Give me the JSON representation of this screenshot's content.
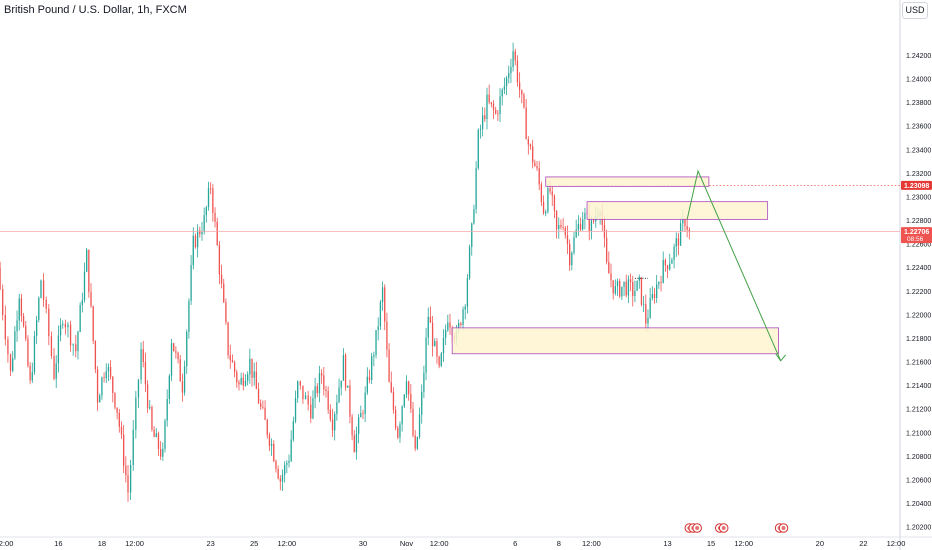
{
  "chart_data": {
    "type": "candlestick",
    "title": "British Pound / U.S. Dollar, 1h, FXCM",
    "currency": "USD",
    "y_axis": {
      "ticks": [
        "1.24200",
        "1.24000",
        "1.23800",
        "1.23600",
        "1.23400",
        "1.23200",
        "1.23000",
        "1.22800",
        "1.22600",
        "1.22400",
        "1.22200",
        "1.22000",
        "1.21800",
        "1.21600",
        "1.21400",
        "1.21200",
        "1.21000",
        "1.20800",
        "1.20600",
        "1.20400",
        "1.20200"
      ],
      "ylim": [
        1.2015,
        1.2445
      ]
    },
    "x_axis": {
      "ticks": [
        {
          "label": "12:00",
          "day": 13.5
        },
        {
          "label": "16",
          "day": 16
        },
        {
          "label": "18",
          "day": 18
        },
        {
          "label": "12:00",
          "day": 19.5
        },
        {
          "label": "23",
          "day": 23
        },
        {
          "label": "25",
          "day": 25
        },
        {
          "label": "12:00",
          "day": 26.5
        },
        {
          "label": "30",
          "day": 30
        },
        {
          "label": "Nov",
          "day": 32
        },
        {
          "label": "12:00",
          "day": 33.5
        },
        {
          "label": "6",
          "day": 37
        },
        {
          "label": "8",
          "day": 39
        },
        {
          "label": "12:00",
          "day": 40.5
        },
        {
          "label": "13",
          "day": 44
        },
        {
          "label": "15",
          "day": 46
        },
        {
          "label": "12:00",
          "day": 47.5
        },
        {
          "label": "20",
          "day": 51
        },
        {
          "label": "22",
          "day": 53
        },
        {
          "label": "12:00",
          "day": 54.5
        }
      ]
    },
    "price_path": [
      [
        13.2,
        1.224
      ],
      [
        13.8,
        1.215
      ],
      [
        14.2,
        1.222
      ],
      [
        14.7,
        1.214
      ],
      [
        15.2,
        1.223
      ],
      [
        15.8,
        1.215
      ],
      [
        16.2,
        1.22
      ],
      [
        16.8,
        1.217
      ],
      [
        17.3,
        1.225
      ],
      [
        17.8,
        1.213
      ],
      [
        18.2,
        1.216
      ],
      [
        18.7,
        1.212
      ],
      [
        19.2,
        1.205
      ],
      [
        19.8,
        1.217
      ],
      [
        20.3,
        1.21
      ],
      [
        20.8,
        1.208
      ],
      [
        21.2,
        1.218
      ],
      [
        21.7,
        1.214
      ],
      [
        22.2,
        1.226
      ],
      [
        22.7,
        1.228
      ],
      [
        23.0,
        1.231
      ],
      [
        23.4,
        1.224
      ],
      [
        23.8,
        1.217
      ],
      [
        24.3,
        1.214
      ],
      [
        24.8,
        1.216
      ],
      [
        25.3,
        1.212
      ],
      [
        25.8,
        1.209
      ],
      [
        26.2,
        1.206
      ],
      [
        26.6,
        1.208
      ],
      [
        27.0,
        1.214
      ],
      [
        27.6,
        1.212
      ],
      [
        28.1,
        1.215
      ],
      [
        28.6,
        1.211
      ],
      [
        29.1,
        1.216
      ],
      [
        29.6,
        1.209
      ],
      [
        30.1,
        1.213
      ],
      [
        30.6,
        1.218
      ],
      [
        30.9,
        1.222
      ],
      [
        31.2,
        1.214
      ],
      [
        31.6,
        1.21
      ],
      [
        32.0,
        1.215
      ],
      [
        32.4,
        1.208
      ],
      [
        32.7,
        1.213
      ],
      [
        33.0,
        1.22
      ],
      [
        33.5,
        1.215
      ],
      [
        33.9,
        1.22
      ],
      [
        34.3,
        1.218
      ],
      [
        34.7,
        1.2215
      ],
      [
        35.0,
        1.227
      ],
      [
        35.3,
        1.235
      ],
      [
        35.7,
        1.238
      ],
      [
        36.1,
        1.237
      ],
      [
        36.6,
        1.24
      ],
      [
        36.9,
        1.2425
      ],
      [
        37.3,
        1.238
      ],
      [
        37.6,
        1.2345
      ],
      [
        38.0,
        1.232
      ],
      [
        38.3,
        1.229
      ],
      [
        38.6,
        1.2305
      ],
      [
        38.9,
        1.227
      ],
      [
        39.2,
        1.228
      ],
      [
        39.5,
        1.225
      ],
      [
        39.8,
        1.227
      ],
      [
        40.1,
        1.2285
      ],
      [
        40.5,
        1.2275
      ],
      [
        40.9,
        1.2295
      ],
      [
        41.2,
        1.224
      ],
      [
        41.6,
        1.222
      ],
      [
        42.0,
        1.2225
      ],
      [
        42.4,
        1.222
      ],
      [
        42.7,
        1.2225
      ],
      [
        43.0,
        1.2195
      ],
      [
        43.4,
        1.222
      ],
      [
        43.8,
        1.224
      ],
      [
        44.2,
        1.225
      ],
      [
        44.6,
        1.227
      ],
      [
        44.8,
        1.2281
      ],
      [
        45.0,
        1.2271
      ]
    ],
    "last_price": "1.22706",
    "countdown": "08:56",
    "marked_level": "1.23098",
    "zones": [
      {
        "name": "upper-resistance",
        "from_day": 38.4,
        "to_day": 45.9,
        "low": 1.2309,
        "high": 1.2317
      },
      {
        "name": "middle-resistance",
        "from_day": 40.3,
        "to_day": 48.6,
        "low": 1.2281,
        "high": 1.2296
      },
      {
        "name": "demand-support",
        "from_day": 34.1,
        "to_day": 49.1,
        "low": 1.2167,
        "high": 1.2189
      }
    ],
    "projection": [
      [
        44.9,
        1.2281
      ],
      [
        45.4,
        1.2322
      ],
      [
        49.2,
        1.2161
      ]
    ],
    "projection_color": "#43a047",
    "up_color": "#26a69a",
    "down_color": "#ef5350",
    "event_markers": [
      {
        "day": 45.0
      },
      {
        "day": 45.18
      },
      {
        "day": 45.36
      },
      {
        "day": 46.4
      },
      {
        "day": 46.58
      },
      {
        "day": 49.15
      },
      {
        "day": 49.33
      }
    ]
  }
}
